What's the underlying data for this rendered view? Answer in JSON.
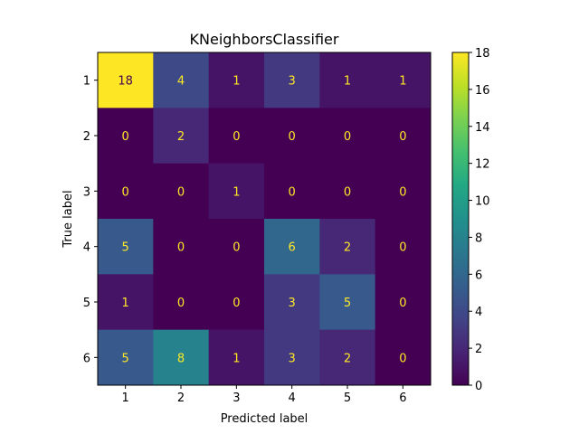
{
  "chart_data": {
    "type": "heatmap",
    "title": "KNeighborsClassifier",
    "xlabel": "Predicted label",
    "ylabel": "True label",
    "x_categories": [
      "1",
      "2",
      "3",
      "4",
      "5",
      "6"
    ],
    "y_categories": [
      "1",
      "2",
      "3",
      "4",
      "5",
      "6"
    ],
    "values": [
      [
        18,
        4,
        1,
        3,
        1,
        1
      ],
      [
        0,
        2,
        0,
        0,
        0,
        0
      ],
      [
        0,
        0,
        1,
        0,
        0,
        0
      ],
      [
        5,
        0,
        0,
        6,
        2,
        0
      ],
      [
        1,
        0,
        0,
        3,
        5,
        0
      ],
      [
        5,
        8,
        1,
        3,
        2,
        0
      ]
    ],
    "colormap": "viridis",
    "vmin": 0,
    "vmax": 18,
    "colorbar_ticks": [
      0,
      2,
      4,
      6,
      8,
      10,
      12,
      14,
      16,
      18
    ],
    "text_color_dark_cells": "#fde725",
    "text_color_light_cells": "#440154"
  }
}
